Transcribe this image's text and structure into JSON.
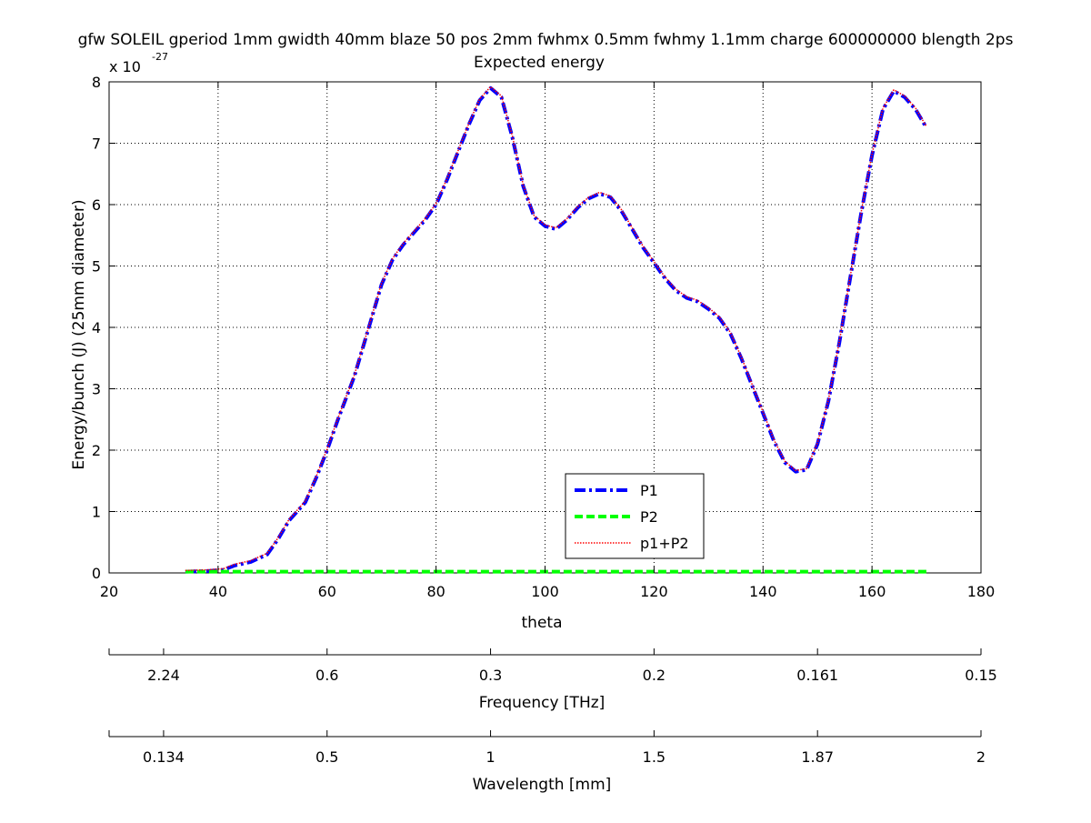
{
  "chart_data": {
    "type": "line",
    "title": "gfw SOLEIL gperiod 1mm gwidth 40mm blaze 50 pos 2mm fwhmx 0.5mm fwhmy 1.1mm charge 600000000 blength 2ps",
    "subtitle": "Expected energy",
    "xlabel": "theta",
    "ylabel": "Energy/bunch (J) (25mm diameter)",
    "y_exponent_label": "x 10",
    "y_exponent_power": "-27",
    "xlim": [
      20,
      180
    ],
    "ylim": [
      0,
      8
    ],
    "grid": true,
    "legend_position": "lower-center",
    "x_ticks": [
      "20",
      "40",
      "60",
      "80",
      "100",
      "120",
      "140",
      "160",
      "180"
    ],
    "y_ticks": [
      "0",
      "1",
      "2",
      "3",
      "4",
      "5",
      "6",
      "7",
      "8"
    ],
    "series": [
      {
        "name": "P1",
        "color": "#0000ff",
        "style": "dash-dot",
        "x": [
          34,
          38,
          41,
          43,
          46,
          49,
          51,
          53,
          56,
          58,
          60,
          62,
          65,
          68,
          70,
          72,
          74,
          76,
          78,
          80,
          82,
          84,
          86,
          88,
          90,
          92,
          94,
          96,
          98,
          100,
          102,
          104,
          106,
          108,
          110,
          112,
          114,
          116,
          118,
          120,
          122,
          124,
          126,
          128,
          130,
          132,
          134,
          136,
          138,
          140,
          142,
          144,
          146,
          148,
          150,
          152,
          154,
          156,
          158,
          160,
          162,
          164,
          166,
          168,
          170
        ],
        "y": [
          0.02,
          0.03,
          0.05,
          0.12,
          0.18,
          0.3,
          0.55,
          0.85,
          1.15,
          1.55,
          2.0,
          2.5,
          3.2,
          4.1,
          4.7,
          5.1,
          5.35,
          5.55,
          5.75,
          6.0,
          6.4,
          6.85,
          7.3,
          7.7,
          7.9,
          7.75,
          7.1,
          6.3,
          5.8,
          5.65,
          5.6,
          5.75,
          5.95,
          6.1,
          6.18,
          6.12,
          5.9,
          5.6,
          5.3,
          5.05,
          4.8,
          4.6,
          4.48,
          4.42,
          4.3,
          4.15,
          3.9,
          3.5,
          3.05,
          2.6,
          2.15,
          1.8,
          1.65,
          1.68,
          2.1,
          2.8,
          3.75,
          4.8,
          5.85,
          6.8,
          7.55,
          7.85,
          7.75,
          7.55,
          7.25
        ]
      },
      {
        "name": "P2",
        "color": "#00ff00",
        "style": "dashed",
        "x": [
          34,
          170
        ],
        "y": [
          0.02,
          0.02
        ]
      },
      {
        "name": "p1+P2",
        "color": "#ff0000",
        "style": "dotted",
        "x": [
          34,
          38,
          41,
          43,
          46,
          49,
          51,
          53,
          56,
          58,
          60,
          62,
          65,
          68,
          70,
          72,
          74,
          76,
          78,
          80,
          82,
          84,
          86,
          88,
          90,
          92,
          94,
          96,
          98,
          100,
          102,
          104,
          106,
          108,
          110,
          112,
          114,
          116,
          118,
          120,
          122,
          124,
          126,
          128,
          130,
          132,
          134,
          136,
          138,
          140,
          142,
          144,
          146,
          148,
          150,
          152,
          154,
          156,
          158,
          160,
          162,
          164,
          166,
          168,
          170
        ],
        "y": [
          0.04,
          0.05,
          0.07,
          0.14,
          0.2,
          0.32,
          0.57,
          0.87,
          1.17,
          1.57,
          2.02,
          2.52,
          3.22,
          4.12,
          4.72,
          5.12,
          5.37,
          5.57,
          5.77,
          6.02,
          6.42,
          6.87,
          7.32,
          7.72,
          7.92,
          7.77,
          7.12,
          6.32,
          5.82,
          5.67,
          5.62,
          5.77,
          5.97,
          6.12,
          6.2,
          6.14,
          5.92,
          5.62,
          5.32,
          5.07,
          4.82,
          4.62,
          4.5,
          4.44,
          4.32,
          4.17,
          3.92,
          3.52,
          3.07,
          2.62,
          2.17,
          1.82,
          1.67,
          1.7,
          2.12,
          2.82,
          3.77,
          4.82,
          5.87,
          6.82,
          7.57,
          7.87,
          7.77,
          7.57,
          7.27
        ]
      }
    ],
    "secondary_axes": [
      {
        "label": "Frequency [THz]",
        "tick_labels": [
          "2.24",
          "0.6",
          "0.3",
          "0.2",
          "0.161",
          "0.15"
        ],
        "tick_positions_theta": [
          30,
          60,
          90,
          120,
          150,
          180
        ],
        "minor_tick_positions_theta": [
          20
        ]
      },
      {
        "label": "Wavelength [mm]",
        "tick_labels": [
          "0.134",
          "0.5",
          "1",
          "1.5",
          "1.87",
          "2"
        ],
        "tick_positions_theta": [
          30,
          60,
          90,
          120,
          150,
          180
        ],
        "minor_tick_positions_theta": [
          20
        ]
      }
    ]
  }
}
